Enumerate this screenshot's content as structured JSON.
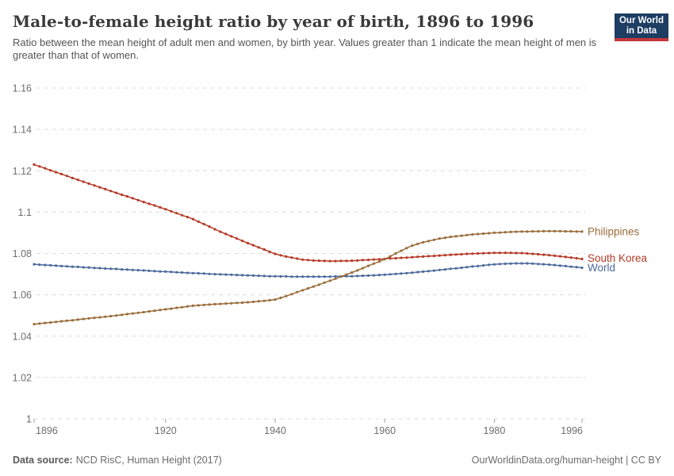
{
  "header": {
    "title": "Male-to-female height ratio by year of birth, 1896 to 1996",
    "subtitle": "Ratio between the mean height of adult men and women, by birth year. Values greater than 1 indicate the mean height of men is greater than that of women.",
    "logo": {
      "line1": "Our World",
      "line2": "in Data",
      "bg_color": "#1d3d63",
      "stripe_color": "#c5383b"
    }
  },
  "footer": {
    "datasource_label": "Data source:",
    "datasource_value": "NCD RisC, Human Height (2017)",
    "rights": "OurWorldinData.org/human-height | CC BY"
  },
  "chart_data": {
    "type": "line",
    "title": "Male-to-female height ratio by year of birth, 1896 to 1996",
    "xlabel": "",
    "ylabel": "",
    "xlim": [
      1896,
      1996
    ],
    "ylim": [
      1.0,
      1.16
    ],
    "x_ticks": [
      1896,
      1920,
      1940,
      1960,
      1980,
      1996
    ],
    "y_ticks": [
      1.0,
      1.02,
      1.04,
      1.06,
      1.08,
      1.1,
      1.12,
      1.14,
      1.16
    ],
    "y_tick_labels": [
      "1",
      "1.02",
      "1.04",
      "1.06",
      "1.08",
      "1.1",
      "1.12",
      "1.14",
      "1.16"
    ],
    "grid": "horizontal-dashed",
    "legend_position": "end-of-line-labels",
    "axis_text_color": "#6e6e6e",
    "grid_color": "#dcdcdc",
    "x": [
      1896,
      1897,
      1898,
      1899,
      1900,
      1901,
      1902,
      1903,
      1904,
      1905,
      1906,
      1907,
      1908,
      1909,
      1910,
      1911,
      1912,
      1913,
      1914,
      1915,
      1916,
      1917,
      1918,
      1919,
      1920,
      1921,
      1922,
      1923,
      1924,
      1925,
      1926,
      1927,
      1928,
      1929,
      1930,
      1931,
      1932,
      1933,
      1934,
      1935,
      1936,
      1937,
      1938,
      1939,
      1940,
      1941,
      1942,
      1943,
      1944,
      1945,
      1946,
      1947,
      1948,
      1949,
      1950,
      1951,
      1952,
      1953,
      1954,
      1955,
      1956,
      1957,
      1958,
      1959,
      1960,
      1961,
      1962,
      1963,
      1964,
      1965,
      1966,
      1967,
      1968,
      1969,
      1970,
      1971,
      1972,
      1973,
      1974,
      1975,
      1976,
      1977,
      1978,
      1979,
      1980,
      1981,
      1982,
      1983,
      1984,
      1985,
      1986,
      1987,
      1988,
      1989,
      1990,
      1991,
      1992,
      1993,
      1994,
      1995,
      1996
    ],
    "series": [
      {
        "name": "World",
        "color": "#4c6a9c",
        "values": [
          1.0748,
          1.0746,
          1.0744,
          1.0743,
          1.0741,
          1.0739,
          1.0738,
          1.0736,
          1.0735,
          1.0733,
          1.0732,
          1.073,
          1.0729,
          1.0727,
          1.0726,
          1.0725,
          1.0723,
          1.0722,
          1.072,
          1.0719,
          1.0718,
          1.0716,
          1.0715,
          1.0713,
          1.0712,
          1.0711,
          1.0709,
          1.0708,
          1.0706,
          1.0705,
          1.0704,
          1.0703,
          1.0701,
          1.07,
          1.0699,
          1.0698,
          1.0697,
          1.0696,
          1.0695,
          1.0694,
          1.0693,
          1.0692,
          1.0691,
          1.069,
          1.069,
          1.0689,
          1.0689,
          1.0688,
          1.0688,
          1.0688,
          1.0688,
          1.0688,
          1.0688,
          1.0688,
          1.0688,
          1.0689,
          1.0689,
          1.069,
          1.069,
          1.0691,
          1.0692,
          1.0693,
          1.0694,
          1.0696,
          1.0697,
          1.0699,
          1.0701,
          1.0703,
          1.0705,
          1.0707,
          1.071,
          1.0712,
          1.0715,
          1.0717,
          1.072,
          1.0723,
          1.0726,
          1.0728,
          1.0731,
          1.0734,
          1.0737,
          1.0739,
          1.0742,
          1.0745,
          1.0747,
          1.0749,
          1.075,
          1.0751,
          1.0752,
          1.0752,
          1.0752,
          1.0751,
          1.0749,
          1.0748,
          1.0746,
          1.0744,
          1.0741,
          1.0739,
          1.0736,
          1.0734,
          1.0731
        ]
      },
      {
        "name": "South Korea",
        "color": "#b63926",
        "values": [
          1.123,
          1.1221,
          1.1212,
          1.1202,
          1.1193,
          1.1184,
          1.1175,
          1.1165,
          1.1156,
          1.1147,
          1.1138,
          1.1129,
          1.112,
          1.1111,
          1.1102,
          1.1093,
          1.1084,
          1.1076,
          1.1067,
          1.1058,
          1.1049,
          1.104,
          1.1032,
          1.1023,
          1.1014,
          1.1004,
          1.0995,
          1.0985,
          1.0976,
          1.0966,
          1.0954,
          1.0942,
          1.093,
          1.0917,
          1.0905,
          1.0894,
          1.0883,
          1.0872,
          1.0861,
          1.085,
          1.084,
          1.0829,
          1.0819,
          1.0808,
          1.0798,
          1.0791,
          1.0785,
          1.078,
          1.0775,
          1.077,
          1.0768,
          1.0766,
          1.0765,
          1.0764,
          1.0763,
          1.0763,
          1.0764,
          1.0764,
          1.0765,
          1.0766,
          1.0768,
          1.0769,
          1.0771,
          1.0772,
          1.0774,
          1.0776,
          1.0777,
          1.0779,
          1.078,
          1.0782,
          1.0784,
          1.0785,
          1.0787,
          1.0788,
          1.079,
          1.0792,
          1.0793,
          1.0795,
          1.0796,
          1.0798,
          1.0799,
          1.08,
          1.0801,
          1.0802,
          1.0803,
          1.0803,
          1.0803,
          1.0803,
          1.0802,
          1.0802,
          1.08,
          1.0798,
          1.0796,
          1.0794,
          1.0792,
          1.0789,
          1.0786,
          1.0783,
          1.078,
          1.0777,
          1.0773
        ]
      },
      {
        "name": "Philippines",
        "color": "#9a6d3b",
        "values": [
          1.0458,
          1.0461,
          1.0464,
          1.0466,
          1.0469,
          1.0472,
          1.0475,
          1.0477,
          1.048,
          1.0483,
          1.0486,
          1.0489,
          1.0491,
          1.0494,
          1.0497,
          1.05,
          1.0503,
          1.0507,
          1.051,
          1.0513,
          1.0516,
          1.052,
          1.0523,
          1.0527,
          1.053,
          1.0533,
          1.0537,
          1.054,
          1.0544,
          1.0547,
          1.0549,
          1.0551,
          1.0553,
          1.0555,
          1.0556,
          1.0558,
          1.0559,
          1.0561,
          1.0562,
          1.0564,
          1.0566,
          1.0569,
          1.0571,
          1.0574,
          1.0577,
          1.0585,
          1.0594,
          1.0603,
          1.0613,
          1.0622,
          1.0631,
          1.064,
          1.0649,
          1.0659,
          1.0668,
          1.0678,
          1.0688,
          1.0698,
          1.0708,
          1.0718,
          1.0729,
          1.074,
          1.0751,
          1.0761,
          1.0772,
          1.0786,
          1.08,
          1.0813,
          1.0826,
          1.0838,
          1.0846,
          1.0854,
          1.086,
          1.0866,
          1.0872,
          1.0876,
          1.088,
          1.0883,
          1.0886,
          1.0889,
          1.0892,
          1.0894,
          1.0896,
          1.0898,
          1.09,
          1.0901,
          1.0903,
          1.0904,
          1.0905,
          1.0906,
          1.0906,
          1.0907,
          1.0907,
          1.0908,
          1.0908,
          1.0908,
          1.0908,
          1.0907,
          1.0907,
          1.0906,
          1.0906
        ]
      }
    ]
  }
}
